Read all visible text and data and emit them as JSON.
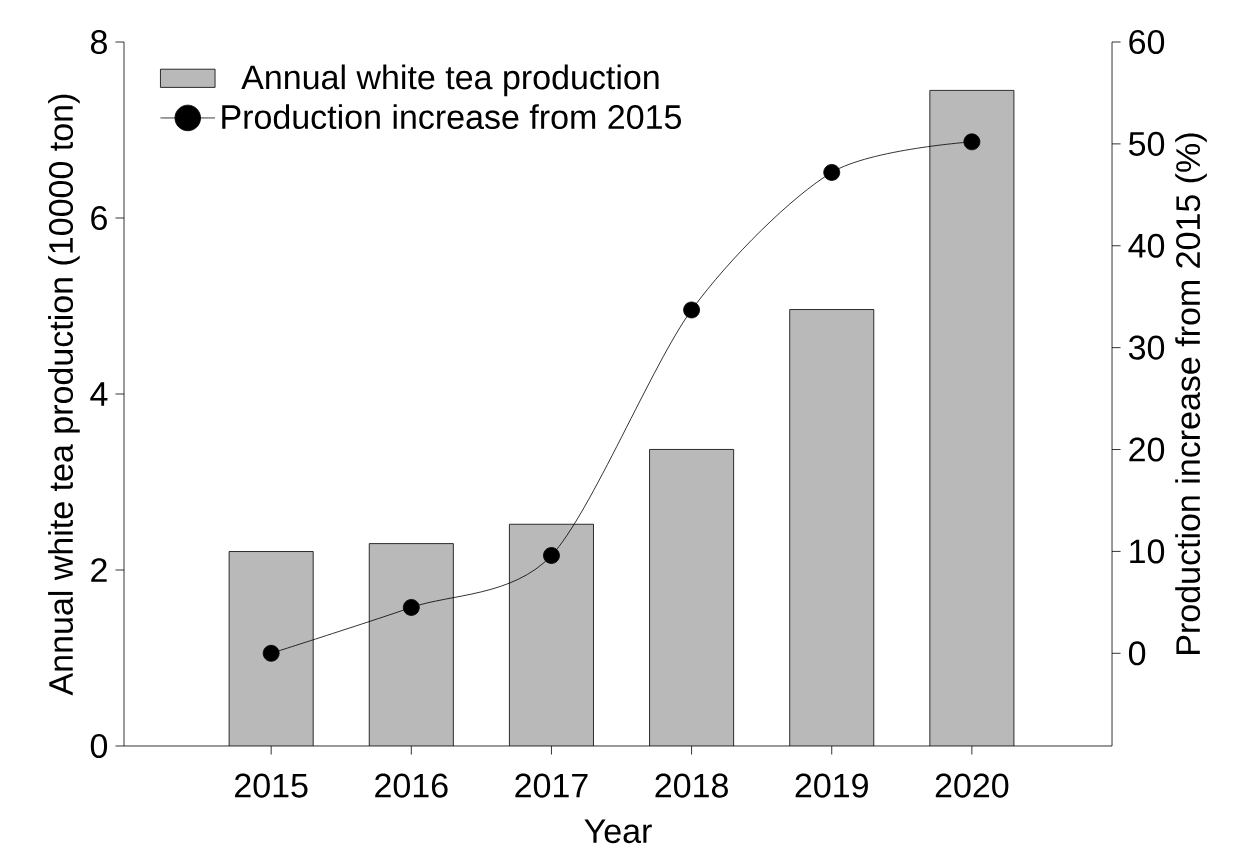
{
  "chart_data": {
    "type": "bar",
    "xlabel": "Year",
    "ylabel": "Annual white tea production (10000 ton)",
    "y2label": "Production increase from 2015 (%)",
    "categories": [
      "2015",
      "2016",
      "2017",
      "2018",
      "2019",
      "2020"
    ],
    "series": [
      {
        "name": "Annual white tea production",
        "color": "#b9b9b9",
        "values": [
          2.21,
          2.3,
          2.52,
          3.37,
          4.96,
          7.45
        ]
      },
      {
        "name": "Production increase from 2015",
        "type": "line",
        "axis": "y2",
        "color": "#000000",
        "values": [
          0,
          4.5,
          9.6,
          33.7,
          47.2,
          50.2
        ]
      }
    ],
    "ylim": [
      0,
      8
    ],
    "yticks": [
      0,
      2,
      4,
      6,
      8
    ],
    "y2lim": [
      -9.1,
      60
    ],
    "y2ticks": [
      0,
      10,
      20,
      30,
      40,
      50,
      60
    ],
    "marker": "circle",
    "legend": "top left"
  }
}
